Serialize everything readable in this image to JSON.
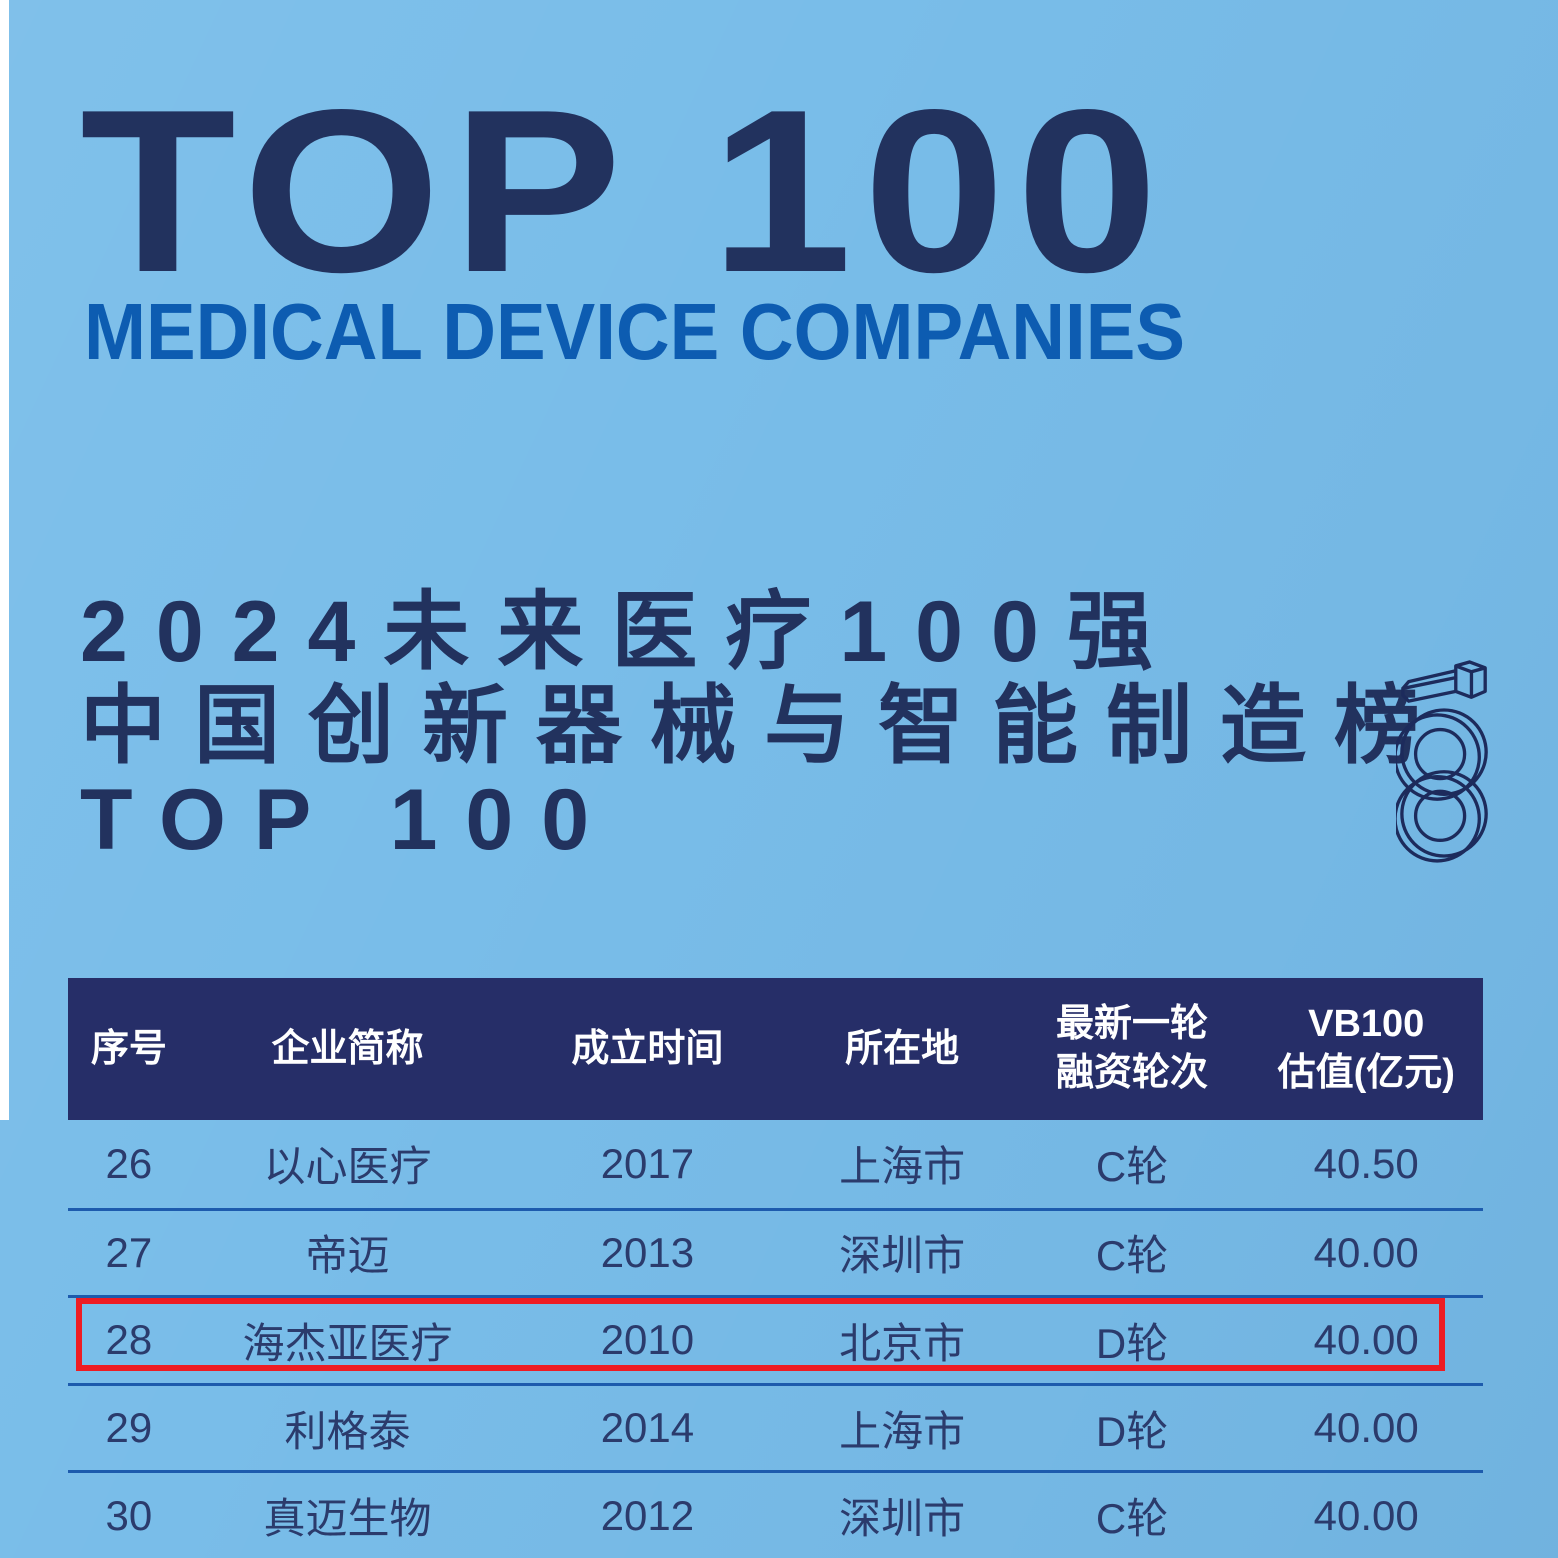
{
  "header": {
    "title": "TOP 100",
    "subtitle": "MEDICAL DEVICE COMPANIES"
  },
  "list_title": {
    "line1": "2024未来医疗100强",
    "line2": "中国创新器械与智能制造榜",
    "line3": "TOP 100"
  },
  "logo": {
    "name": "vb100-100-logo",
    "glyph": "100"
  },
  "table": {
    "columns": [
      {
        "key": "rank",
        "label": "序号"
      },
      {
        "key": "company",
        "label": "企业简称"
      },
      {
        "key": "founded",
        "label": "成立时间"
      },
      {
        "key": "location",
        "label": "所在地"
      },
      {
        "key": "round",
        "label": "最新一轮\n融资轮次"
      },
      {
        "key": "valuation",
        "label": "VB100\n估值(亿元)"
      }
    ],
    "rows": [
      {
        "rank": "26",
        "company": "以心医疗",
        "founded": "2017",
        "location": "上海市",
        "round": "C轮",
        "valuation": "40.50",
        "highlighted": false
      },
      {
        "rank": "27",
        "company": "帝迈",
        "founded": "2013",
        "location": "深圳市",
        "round": "C轮",
        "valuation": "40.00",
        "highlighted": false
      },
      {
        "rank": "28",
        "company": "海杰亚医疗",
        "founded": "2010",
        "location": "北京市",
        "round": "D轮",
        "valuation": "40.00",
        "highlighted": true
      },
      {
        "rank": "29",
        "company": "利格泰",
        "founded": "2014",
        "location": "上海市",
        "round": "D轮",
        "valuation": "40.00",
        "highlighted": false
      },
      {
        "rank": "30",
        "company": "真迈生物",
        "founded": "2012",
        "location": "深圳市",
        "round": "C轮",
        "valuation": "40.00",
        "highlighted": false
      }
    ],
    "highlighted_rank": "28"
  },
  "colors": {
    "background": "#79bde9",
    "title_navy": "#22325e",
    "subtitle_blue": "#0d5cb1",
    "header_bg": "#262e68",
    "header_text": "#ffffff",
    "row_text": "#2b3b6c",
    "separator": "#1d5bad",
    "highlight_red": "#ee1c23",
    "strip_white": "#ffffff",
    "logo_navy": "#1d2b5c"
  }
}
